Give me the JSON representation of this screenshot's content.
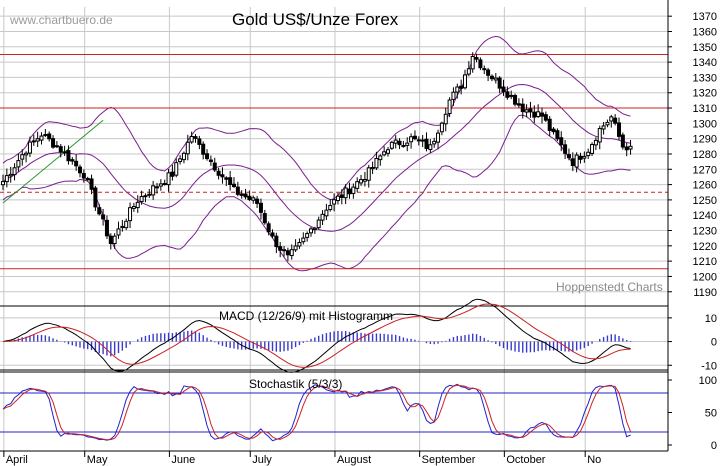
{
  "watermark": "www.chartbuero.de",
  "colors": {
    "background": "#ffffff",
    "grid": "#c8c8c8",
    "candle": "#000000",
    "resistance": "#cc2222",
    "bollinger": "#7a1f8e",
    "trendline": "#2a9a2a",
    "macd_line": "#000000",
    "macd_signal": "#cc2222",
    "histogram": "#3a3acc",
    "stoch_k": "#2222cc",
    "stoch_d": "#cc2222",
    "stoch_bounds": "#2222cc"
  },
  "chart_data": [
    {
      "type": "candlestick",
      "title": "Gold US$/Unze Forex",
      "credit": "Hoppenstedt Charts",
      "ylim": [
        1182,
        1376
      ],
      "y_ticks": [
        1190,
        1200,
        1210,
        1220,
        1230,
        1240,
        1250,
        1260,
        1270,
        1280,
        1290,
        1300,
        1310,
        1320,
        1330,
        1340,
        1350,
        1360,
        1370
      ],
      "x_labels": [
        "April",
        "May",
        "June",
        "July",
        "August",
        "September",
        "October",
        "No"
      ],
      "resistance_levels": [
        1345,
        1310,
        1205
      ],
      "support_dashed": 1255,
      "bollinger_period": 20,
      "bollinger_std": 2,
      "anchors": [
        {
          "day": 0,
          "close": 1262
        },
        {
          "day": 6,
          "close": 1283
        },
        {
          "day": 10,
          "close": 1293
        },
        {
          "day": 15,
          "close": 1283
        },
        {
          "day": 21,
          "close": 1267
        },
        {
          "day": 28,
          "close": 1222
        },
        {
          "day": 35,
          "close": 1250
        },
        {
          "day": 44,
          "close": 1267
        },
        {
          "day": 49,
          "close": 1292
        },
        {
          "day": 55,
          "close": 1272
        },
        {
          "day": 60,
          "close": 1256
        },
        {
          "day": 66,
          "close": 1248
        },
        {
          "day": 70,
          "close": 1225
        },
        {
          "day": 74,
          "close": 1212
        },
        {
          "day": 77,
          "close": 1220
        },
        {
          "day": 84,
          "close": 1245
        },
        {
          "day": 90,
          "close": 1257
        },
        {
          "day": 95,
          "close": 1268
        },
        {
          "day": 100,
          "close": 1285
        },
        {
          "day": 106,
          "close": 1290
        },
        {
          "day": 111,
          "close": 1284
        },
        {
          "day": 116,
          "close": 1315
        },
        {
          "day": 119,
          "close": 1325
        },
        {
          "day": 122,
          "close": 1345
        },
        {
          "day": 126,
          "close": 1333
        },
        {
          "day": 131,
          "close": 1320
        },
        {
          "day": 135,
          "close": 1310
        },
        {
          "day": 140,
          "close": 1305
        },
        {
          "day": 143,
          "close": 1292
        },
        {
          "day": 148,
          "close": 1275
        },
        {
          "day": 152,
          "close": 1283
        },
        {
          "day": 155,
          "close": 1296
        },
        {
          "day": 158,
          "close": 1304
        },
        {
          "day": 161,
          "close": 1285
        },
        {
          "day": 163,
          "close": 1285
        }
      ],
      "month_start_days": [
        1,
        22,
        44,
        65,
        87,
        109,
        131,
        152
      ]
    },
    {
      "type": "line",
      "title": "MACD (12/26/9) mit Histogramm",
      "ylim": [
        -12,
        15
      ],
      "y_ticks": [
        10,
        0,
        -10
      ],
      "series": [
        "MACD",
        "Signal",
        "Histogram"
      ],
      "fast": 12,
      "slow": 26,
      "signal": 9
    },
    {
      "type": "line",
      "title": "Stochastik (5/3/3)",
      "ylim": [
        0,
        100
      ],
      "y_ticks": [
        100,
        50,
        0
      ],
      "bounds": [
        80,
        20
      ],
      "k_period": 5,
      "k_smooth": 3,
      "d_period": 3
    }
  ]
}
